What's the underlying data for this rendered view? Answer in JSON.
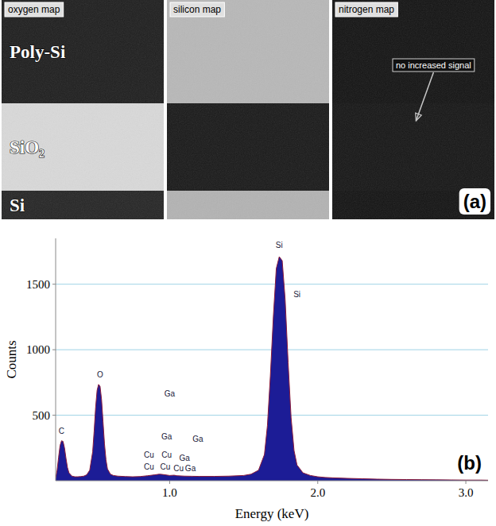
{
  "panel_a": {
    "label": "(a)",
    "layers": [
      "Poly-Si",
      "SiO₂",
      "Si"
    ],
    "maps": [
      {
        "title": "oxygen map",
        "intensity": [
          0.12,
          0.85,
          0.15
        ]
      },
      {
        "title": "silicon map",
        "intensity": [
          0.72,
          0.1,
          0.7
        ]
      },
      {
        "title": "nitrogen map",
        "intensity": [
          0.08,
          0.09,
          0.08
        ],
        "annotation": "no increased signal"
      }
    ]
  },
  "chart_data": {
    "type": "area",
    "panel_label": "(b)",
    "x_label": "Energy (keV)",
    "y_label": "Counts",
    "color": "#1c1c96",
    "x": [
      0.23,
      0.24,
      0.25,
      0.26,
      0.27,
      0.28,
      0.29,
      0.3,
      0.31,
      0.32,
      0.34,
      0.36,
      0.38,
      0.4,
      0.42,
      0.44,
      0.46,
      0.48,
      0.49,
      0.5,
      0.51,
      0.52,
      0.53,
      0.54,
      0.55,
      0.56,
      0.57,
      0.58,
      0.6,
      0.62,
      0.65,
      0.7,
      0.75,
      0.8,
      0.85,
      0.9,
      0.93,
      0.95,
      1.0,
      1.03,
      1.05,
      1.1,
      1.15,
      1.2,
      1.3,
      1.4,
      1.5,
      1.55,
      1.6,
      1.64,
      1.66,
      1.68,
      1.7,
      1.72,
      1.74,
      1.76,
      1.78,
      1.8,
      1.82,
      1.84,
      1.86,
      1.9,
      1.95,
      2.0,
      2.05,
      2.1,
      2.2,
      2.3,
      2.4,
      2.5,
      2.6,
      2.7,
      2.8,
      2.9,
      3.0,
      3.1,
      3.15
    ],
    "values": [
      20,
      80,
      180,
      270,
      305,
      300,
      250,
      170,
      100,
      60,
      35,
      30,
      30,
      32,
      35,
      45,
      80,
      220,
      380,
      560,
      690,
      735,
      720,
      620,
      450,
      280,
      160,
      90,
      50,
      40,
      35,
      32,
      30,
      32,
      38,
      45,
      50,
      48,
      40,
      42,
      38,
      35,
      34,
      33,
      33,
      35,
      40,
      50,
      80,
      200,
      420,
      800,
      1250,
      1620,
      1710,
      1680,
      1380,
      900,
      480,
      230,
      120,
      60,
      40,
      30,
      25,
      22,
      18,
      15,
      12,
      10,
      9,
      8,
      7,
      6,
      5,
      5,
      4
    ],
    "xlim": [
      0.23,
      3.15
    ],
    "xticks": [
      {
        "value": 1,
        "label": "1.0"
      },
      {
        "value": 2,
        "label": "2.0"
      },
      {
        "value": 3,
        "label": "3.0"
      }
    ],
    "ylim": [
      0,
      1850
    ],
    "yticks": [
      500,
      1000,
      1500
    ],
    "grid": true,
    "annotations": [
      {
        "text": "C",
        "x": 0.27,
        "y": 360
      },
      {
        "text": "O",
        "x": 0.53,
        "y": 790
      },
      {
        "text": "Si",
        "x": 1.74,
        "y": 1780
      },
      {
        "text": "Si",
        "x": 1.86,
        "y": 1400
      },
      {
        "text": "Ga",
        "x": 1.0,
        "y": 640
      },
      {
        "text": "Ga",
        "x": 0.98,
        "y": 313
      },
      {
        "text": "Ga",
        "x": 1.19,
        "y": 300
      },
      {
        "text": "Cu",
        "x": 0.86,
        "y": 174
      },
      {
        "text": "Cu",
        "x": 0.98,
        "y": 174
      },
      {
        "text": "Ga",
        "x": 1.1,
        "y": 150
      },
      {
        "text": "Cu",
        "x": 0.86,
        "y": 84
      },
      {
        "text": "Cu",
        "x": 0.97,
        "y": 84
      },
      {
        "text": "Cu",
        "x": 1.06,
        "y": 73
      },
      {
        "text": "Ga",
        "x": 1.14,
        "y": 73
      }
    ]
  }
}
